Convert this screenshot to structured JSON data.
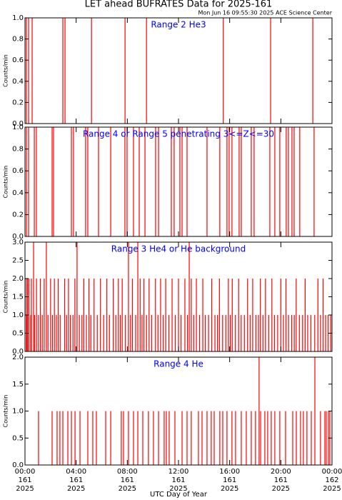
{
  "title": "LET ahead BUFRATES Data for 2025-161",
  "subtitle": "Mon Jun 16 09:55:30 2025 ACE Science Center",
  "chart_data": [
    {
      "type": "spike",
      "annotation": "Range 2 He3",
      "ylabel": "Counts/min",
      "color": "#ff0000",
      "xlim": [
        0,
        24
      ],
      "ylim": [
        0,
        1
      ],
      "yticks": [
        {
          "value": 0,
          "label": "0.0"
        },
        0.2,
        0.4,
        0.6,
        0.8,
        {
          "value": 1,
          "label": "1.0"
        }
      ],
      "x": [
        0.1,
        0.28,
        0.56,
        2.96,
        3.13,
        5.2,
        7.82,
        9.5,
        15.5,
        19.2,
        22.5
      ],
      "values": [
        1,
        1,
        1,
        1,
        1,
        1,
        1,
        1,
        1,
        1,
        1
      ]
    },
    {
      "type": "spike",
      "annotation": "Range 4 or Range 5 penetrating 3<=Z<=30",
      "ylabel": "Counts/min",
      "color": "#ff0000",
      "xlim": [
        0,
        24
      ],
      "ylim": [
        0,
        1
      ],
      "yticks": [
        {
          "value": 0,
          "label": "0.0"
        },
        0.2,
        0.4,
        0.6,
        0.8,
        {
          "value": 1,
          "label": "1.0"
        }
      ],
      "x": [
        0.11,
        0.28,
        0.73,
        0.89,
        2.12,
        2.23,
        3.63,
        3.79,
        4.74,
        4.91,
        5.75,
        6.7,
        7.81,
        7.98,
        8.48,
        8.93,
        9.38,
        10.21,
        10.44,
        11.44,
        11.66,
        12.11,
        12.28,
        12.67,
        14.23,
        15.23,
        15.79,
        15.96,
        16.18,
        16.74,
        16.91,
        17.69,
        17.91,
        19.14,
        19.53,
        19.92,
        20.42,
        20.59,
        20.87,
        21.04,
        21.48,
        22.6
      ],
      "values": [
        1,
        1,
        1,
        1,
        1,
        1,
        1,
        1,
        1,
        1,
        1,
        1,
        1,
        1,
        1,
        1,
        1,
        1,
        1,
        1,
        1,
        1,
        1,
        1,
        1,
        1,
        1,
        1,
        1,
        1,
        1,
        1,
        1,
        1,
        1,
        1,
        1,
        1,
        1,
        1,
        1,
        1
      ]
    },
    {
      "type": "spike",
      "annotation": "Range 3 He4 or He background",
      "ylabel": "Counts/min",
      "color": "#ff0000",
      "xlim": [
        0,
        24
      ],
      "ylim": [
        0,
        3
      ],
      "yticks": [
        {
          "value": 0,
          "label": "0.0"
        },
        0.5,
        {
          "value": 1,
          "label": "1.0"
        },
        1.5,
        {
          "value": 2,
          "label": "2.0"
        },
        2.5,
        {
          "value": 3,
          "label": "3.0"
        }
      ],
      "x": [
        0.67,
        1.67,
        4.07,
        8.09,
        8.82,
        12.84,
        0.1,
        0.2,
        0.3,
        0.5,
        0.9,
        1.2,
        1.5,
        2.0,
        2.3,
        2.6,
        3.1,
        3.4,
        3.9,
        4.6,
        5.0,
        5.4,
        5.9,
        6.4,
        6.9,
        7.3,
        7.6,
        8.4,
        9.0,
        9.3,
        9.7,
        10.2,
        10.6,
        11.0,
        11.5,
        12.0,
        12.5,
        13.0,
        13.4,
        13.9,
        14.6,
        15.2,
        15.9,
        16.2,
        16.7,
        17.4,
        17.8,
        18.4,
        18.8,
        19.3,
        20.0,
        20.4,
        21.2,
        21.9,
        22.9,
        23.3,
        0.15,
        0.45,
        0.75,
        1.05,
        1.35,
        1.8,
        2.15,
        2.45,
        2.75,
        3.25,
        3.55,
        3.75,
        4.25,
        4.45,
        4.8,
        5.15,
        5.65,
        6.15,
        6.6,
        7.1,
        7.45,
        7.85,
        8.25,
        8.65,
        9.15,
        9.5,
        9.9,
        10.4,
        10.8,
        11.25,
        11.75,
        12.2,
        12.7,
        13.2,
        13.65,
        14.1,
        14.35,
        14.85,
        15.05,
        15.45,
        15.7,
        16.05,
        16.45,
        16.9,
        17.15,
        17.6,
        18.05,
        18.25,
        18.6,
        19.05,
        19.5,
        19.75,
        20.2,
        20.6,
        20.85,
        21.05,
        21.45,
        21.7,
        22.1,
        22.35,
        22.65,
        23.1,
        23.5,
        23.7,
        23.9
      ],
      "values": [
        3,
        3,
        3,
        3,
        3,
        3,
        2,
        2,
        2,
        2,
        2,
        2,
        2,
        2,
        2,
        2,
        2,
        2,
        2,
        2,
        2,
        2,
        2,
        2,
        2,
        2,
        2,
        2,
        2,
        2,
        2,
        2,
        2,
        2,
        2,
        2,
        2,
        2,
        2,
        2,
        2,
        2,
        2,
        2,
        2,
        2,
        2,
        2,
        2,
        2,
        2,
        2,
        2,
        2,
        2,
        2,
        1,
        1,
        1,
        1,
        1,
        1,
        1,
        1,
        1,
        1,
        1,
        1,
        1,
        1,
        1,
        1,
        1,
        1,
        1,
        1,
        1,
        1,
        1,
        1,
        1,
        1,
        1,
        1,
        1,
        1,
        1,
        1,
        1,
        1,
        1,
        1,
        1,
        1,
        1,
        1,
        1,
        1,
        1,
        1,
        1,
        1,
        1,
        1,
        1,
        1,
        1,
        1,
        1,
        1,
        1,
        1,
        1,
        1,
        1,
        1,
        1,
        1,
        1,
        1,
        1
      ]
    },
    {
      "type": "spike",
      "annotation": "Range 4 He",
      "ylabel": "Counts/min",
      "color": "#ff0000",
      "xlim": [
        0,
        24
      ],
      "ylim": [
        0,
        2
      ],
      "yticks": [
        {
          "value": 0,
          "label": "0.0"
        },
        0.5,
        {
          "value": 1,
          "label": "1.0"
        },
        1.5,
        {
          "value": 2,
          "label": "2.0"
        }
      ],
      "xlabel": "UTC Day of Year",
      "xticks": [
        {
          "value": 0,
          "label": "00:00",
          "day": "161",
          "year": "2025"
        },
        {
          "value": 4,
          "label": "04:00",
          "day": "161",
          "year": "2025"
        },
        {
          "value": 8,
          "label": "08:00",
          "day": "161",
          "year": "2025"
        },
        {
          "value": 12,
          "label": "12:00",
          "day": "161",
          "year": "2025"
        },
        {
          "value": 16,
          "label": "16:00",
          "day": "161",
          "year": "2025"
        },
        {
          "value": 20,
          "label": "20:00",
          "day": "161",
          "year": "2025"
        },
        {
          "value": 24,
          "label": "00:00",
          "day": "162",
          "year": "2025"
        }
      ],
      "x": [
        1.06,
        2.12,
        2.51,
        2.73,
        2.96,
        3.35,
        3.63,
        3.91,
        4.3,
        4.91,
        5.3,
        5.58,
        6.31,
        6.7,
        7.53,
        7.7,
        8.09,
        8.48,
        8.82,
        9.21,
        9.65,
        10.04,
        10.44,
        10.88,
        11.05,
        11.27,
        11.72,
        12.28,
        12.67,
        13.0,
        13.56,
        13.84,
        14.23,
        14.56,
        14.79,
        15.23,
        15.46,
        15.79,
        16.18,
        16.46,
        16.91,
        17.3,
        17.69,
        18.02,
        18.3,
        18.42,
        18.75,
        18.97,
        19.25,
        19.53,
        19.92,
        20.37,
        20.93,
        21.21,
        21.54,
        21.76,
        22.04,
        22.38,
        22.66,
        23.1,
        23.44,
        23.55,
        23.72,
        23.83
      ],
      "values": [
        1,
        1,
        1,
        1,
        1,
        1,
        1,
        1,
        1,
        1,
        1,
        1,
        1,
        1,
        1,
        1,
        1,
        1,
        1,
        1,
        1,
        1,
        1,
        1,
        1,
        1,
        1,
        1,
        1,
        1,
        1,
        1,
        1,
        1,
        1,
        1,
        1,
        1,
        1,
        1,
        1,
        1,
        1,
        1,
        2,
        1,
        1,
        1,
        1,
        1,
        1,
        1,
        1,
        1,
        1,
        1,
        1,
        1,
        2,
        1,
        1,
        1,
        1,
        1
      ]
    }
  ]
}
